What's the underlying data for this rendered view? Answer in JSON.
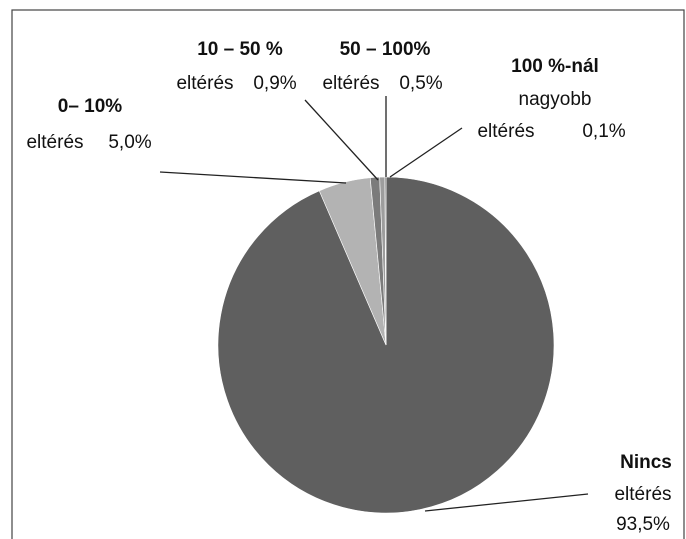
{
  "chart_data": {
    "type": "pie",
    "categories": [
      "Nincs",
      "0– 10%",
      "10 – 50 %",
      "50 – 100%",
      "100 %-nál"
    ],
    "descriptions": [
      [
        "eltérés"
      ],
      [
        "eltérés"
      ],
      [
        "eltérés"
      ],
      [
        "eltérés"
      ],
      [
        "nagyobb",
        "eltérés"
      ]
    ],
    "values": [
      93.5,
      5.0,
      0.9,
      0.5,
      0.1
    ],
    "value_labels": [
      "93,5%",
      "5,0%",
      "0,9%",
      "0,5%",
      "0,1%"
    ],
    "colors": [
      "#5f5f5f",
      "#b3b3b3",
      "#7b7b7b",
      "#9d9d9d",
      "#3c3c3c"
    ]
  }
}
